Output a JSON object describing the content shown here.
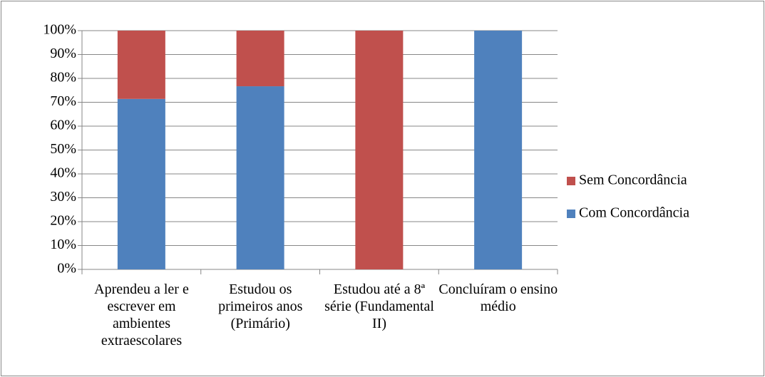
{
  "chart_data": {
    "type": "stacked_bar",
    "categories": [
      "Aprendeu a ler e escrever em ambientes extraescolares",
      "Estudou os primeiros anos (Primário)",
      "Estudou até a 8ª série (Fundamental II)",
      "Concluíram o ensino médio"
    ],
    "series": [
      {
        "name": "Com Concordância",
        "color": "#4f81bd",
        "values": [
          71.4,
          76.7,
          0,
          100
        ]
      },
      {
        "name": "Sem Concordância",
        "color": "#c0504d",
        "values": [
          28.6,
          23.3,
          100,
          0
        ]
      }
    ],
    "ylim": [
      0,
      100
    ],
    "yticks": [
      {
        "value": 0,
        "label": "0%"
      },
      {
        "value": 10,
        "label": "10%"
      },
      {
        "value": 20,
        "label": "20%"
      },
      {
        "value": 30,
        "label": "30%"
      },
      {
        "value": 40,
        "label": "40%"
      },
      {
        "value": 50,
        "label": "50%"
      },
      {
        "value": 60,
        "label": "60%"
      },
      {
        "value": 70,
        "label": "70%"
      },
      {
        "value": 80,
        "label": "80%"
      },
      {
        "value": 90,
        "label": "90%"
      },
      {
        "value": 100,
        "label": "100%"
      }
    ],
    "grid": true,
    "legend": "right"
  }
}
